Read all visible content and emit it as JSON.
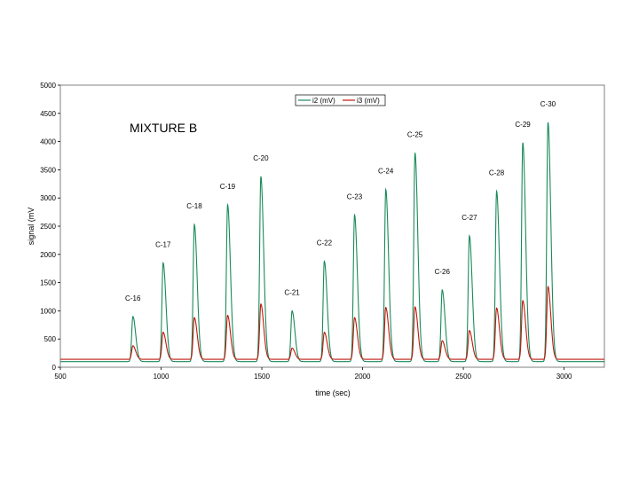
{
  "chart_data": {
    "type": "line",
    "title": "MIXTURE  B",
    "xlabel": "time (sec)",
    "ylabel": "signal (mV",
    "xlim": [
      500,
      3200
    ],
    "ylim": [
      0,
      5000
    ],
    "xticks": [
      500,
      1000,
      1500,
      2000,
      2500,
      3000
    ],
    "yticks": [
      0,
      500,
      1000,
      1500,
      2000,
      2500,
      3000,
      3500,
      4000,
      4500,
      5000
    ],
    "grid": false,
    "legend_position": "top-center",
    "series": [
      {
        "name": "i2 (mV)",
        "color": "#1a8a5a",
        "baseline": 100
      },
      {
        "name": "i3 (mV)",
        "color": "#c0180c",
        "baseline": 140
      }
    ],
    "peaks": [
      {
        "label": "C-16",
        "x": 860,
        "i2": 900,
        "i3": 380
      },
      {
        "label": "C-17",
        "x": 1010,
        "i2": 1850,
        "i3": 620
      },
      {
        "label": "C-18",
        "x": 1165,
        "i2": 2530,
        "i3": 880
      },
      {
        "label": "C-19",
        "x": 1330,
        "i2": 2880,
        "i3": 920
      },
      {
        "label": "C-20",
        "x": 1495,
        "i2": 3380,
        "i3": 1120
      },
      {
        "label": "C-21",
        "x": 1650,
        "i2": 1000,
        "i3": 340
      },
      {
        "label": "C-22",
        "x": 1810,
        "i2": 1880,
        "i3": 620
      },
      {
        "label": "C-23",
        "x": 1960,
        "i2": 2700,
        "i3": 880
      },
      {
        "label": "C-24",
        "x": 2115,
        "i2": 3150,
        "i3": 1060
      },
      {
        "label": "C-25",
        "x": 2260,
        "i2": 3800,
        "i3": 1070
      },
      {
        "label": "C-26",
        "x": 2395,
        "i2": 1370,
        "i3": 470
      },
      {
        "label": "C-27",
        "x": 2530,
        "i2": 2330,
        "i3": 650
      },
      {
        "label": "C-28",
        "x": 2665,
        "i2": 3120,
        "i3": 1050
      },
      {
        "label": "C-29",
        "x": 2795,
        "i2": 3980,
        "i3": 1180
      },
      {
        "label": "C-30",
        "x": 2920,
        "i2": 4340,
        "i3": 1430
      }
    ]
  }
}
